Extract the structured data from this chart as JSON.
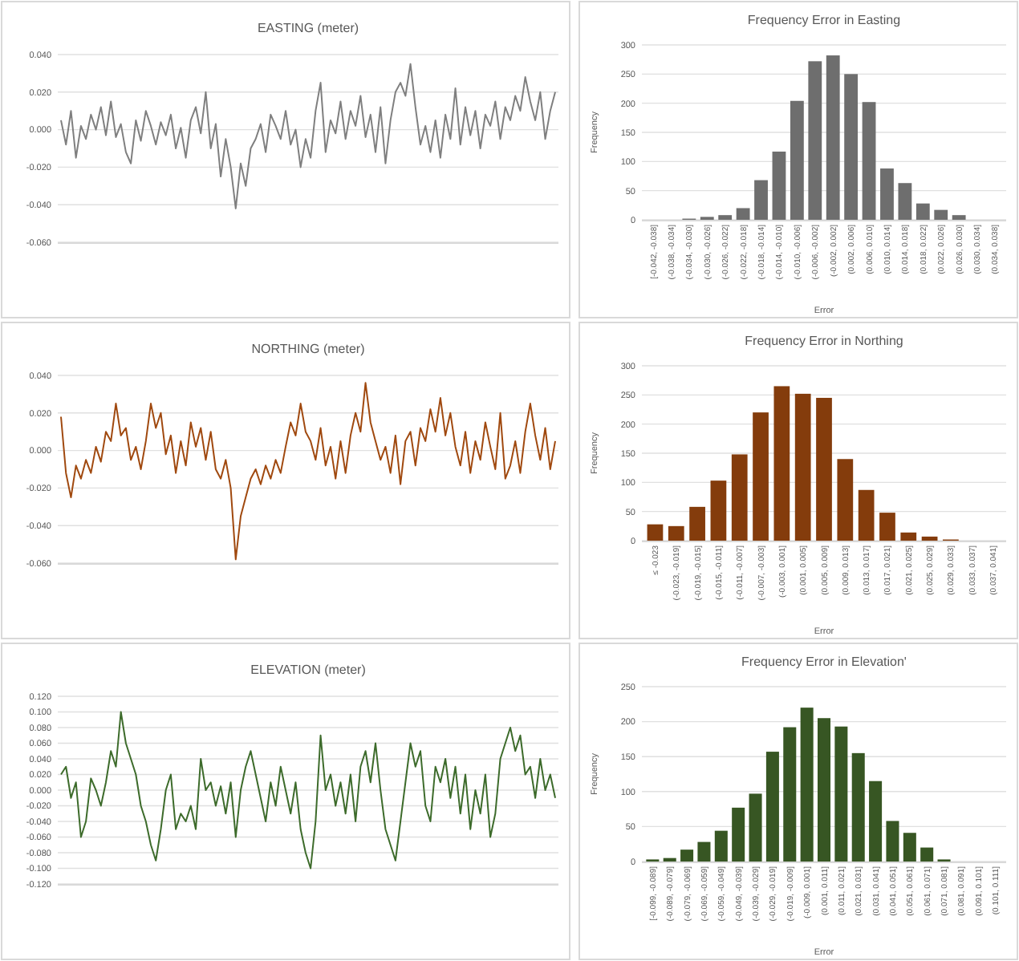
{
  "chart_data": [
    {
      "type": "line",
      "title": "EASTING (meter)",
      "grid": "y",
      "categories": [
        null,
        null,
        null,
        null,
        null,
        null,
        null,
        null,
        null,
        null,
        null,
        null,
        null,
        null,
        null,
        null,
        null,
        null,
        null,
        null,
        null,
        null,
        null,
        null,
        null,
        null,
        null,
        null,
        null,
        null,
        null,
        null,
        null,
        null,
        null,
        null,
        null,
        null,
        null,
        null,
        null,
        null,
        null,
        null,
        null,
        null,
        null,
        null,
        null,
        null,
        null,
        null,
        null,
        null,
        null,
        null,
        null,
        null,
        null,
        null,
        null,
        null,
        null,
        null,
        null,
        null,
        null,
        null,
        null,
        null,
        null,
        null,
        null,
        null,
        null,
        null,
        null,
        null,
        null,
        null,
        null,
        null,
        null,
        null,
        null,
        null,
        null,
        null,
        null,
        null,
        null,
        null,
        null,
        null,
        null,
        null,
        null,
        null,
        null,
        null
      ],
      "ylim": [
        -0.06,
        0.04
      ],
      "yticks": [
        {
          "value": -0.06,
          "label": "-0.060"
        },
        {
          "value": -0.04,
          "label": "-0.040"
        },
        {
          "value": -0.02,
          "label": "-0.020"
        },
        {
          "value": 0,
          "label": "0.000"
        },
        {
          "value": 0.02,
          "label": "0.020"
        },
        {
          "value": 0.04,
          "label": "0.040"
        }
      ],
      "color": "#7f7f7f",
      "values": [
        0.005,
        -0.008,
        0.01,
        -0.015,
        0.002,
        -0.005,
        0.008,
        0.0,
        0.012,
        -0.003,
        0.015,
        -0.004,
        0.003,
        -0.012,
        -0.018,
        0.005,
        -0.006,
        0.01,
        0.002,
        -0.008,
        0.004,
        -0.003,
        0.008,
        -0.01,
        0.001,
        -0.015,
        0.005,
        0.012,
        -0.002,
        0.02,
        -0.01,
        0.003,
        -0.025,
        -0.005,
        -0.02,
        -0.042,
        -0.018,
        -0.03,
        -0.01,
        -0.005,
        0.003,
        -0.012,
        0.008,
        0.002,
        -0.005,
        0.01,
        -0.008,
        0.0,
        -0.02,
        -0.005,
        -0.015,
        0.01,
        0.025,
        -0.012,
        0.005,
        -0.002,
        0.015,
        -0.005,
        0.01,
        0.002,
        0.018,
        -0.004,
        0.008,
        -0.012,
        0.012,
        -0.018,
        0.005,
        0.02,
        0.025,
        0.018,
        0.035,
        0.012,
        -0.008,
        0.002,
        -0.012,
        0.005,
        -0.015,
        0.008,
        -0.005,
        0.022,
        -0.008,
        0.012,
        -0.003,
        0.01,
        -0.01,
        0.008,
        0.002,
        0.015,
        -0.005,
        0.012,
        0.005,
        0.018,
        0.01,
        0.028,
        0.015,
        0.005,
        0.02,
        -0.005,
        0.01,
        0.02
      ]
    },
    {
      "type": "bar",
      "title": "Frequency Error in Easting",
      "xlabel": "Error",
      "ylabel": "Frequency",
      "grid": "y",
      "color": "#6e6e6e",
      "ylim": [
        0,
        300
      ],
      "yticks": [
        0,
        50,
        100,
        150,
        200,
        250,
        300
      ],
      "categories": [
        "[-0.042, -0.038]",
        "(-0.038, -0.034]",
        "(-0.034, -0.030]",
        "(-0.030, -0.026]",
        "(-0.026, -0.022]",
        "(-0.022, -0.018]",
        "(-0.018, -0.014]",
        "(-0.014, -0.010]",
        "(-0.010, -0.006]",
        "(-0.006, -0.002]",
        "(-0.002, 0.002]",
        "(0.002, 0.006]",
        "(0.006, 0.010]",
        "(0.010, 0.014]",
        "(0.014, 0.018]",
        "(0.018, 0.022]",
        "(0.022, 0.026]",
        "(0.026, 0.030]",
        "(0.030, 0.034]",
        "(0.034, 0.038]"
      ],
      "values": [
        0,
        0,
        2,
        5,
        8,
        20,
        68,
        117,
        204,
        272,
        282,
        250,
        202,
        88,
        63,
        28,
        17,
        8,
        0,
        0
      ]
    },
    {
      "type": "line",
      "title": "NORTHING (meter)",
      "grid": "y",
      "categories": [
        null,
        null,
        null,
        null,
        null,
        null,
        null,
        null,
        null,
        null,
        null,
        null,
        null,
        null,
        null,
        null,
        null,
        null,
        null,
        null,
        null,
        null,
        null,
        null,
        null,
        null,
        null,
        null,
        null,
        null,
        null,
        null,
        null,
        null,
        null,
        null,
        null,
        null,
        null,
        null,
        null,
        null,
        null,
        null,
        null,
        null,
        null,
        null,
        null,
        null,
        null,
        null,
        null,
        null,
        null,
        null,
        null,
        null,
        null,
        null,
        null,
        null,
        null,
        null,
        null,
        null,
        null,
        null,
        null,
        null,
        null,
        null,
        null,
        null,
        null,
        null,
        null,
        null,
        null,
        null,
        null,
        null,
        null,
        null,
        null,
        null,
        null,
        null,
        null,
        null,
        null,
        null,
        null,
        null,
        null,
        null,
        null,
        null,
        null,
        null
      ],
      "ylim": [
        -0.06,
        0.04
      ],
      "yticks": [
        {
          "value": -0.06,
          "label": "-0.060"
        },
        {
          "value": -0.04,
          "label": "-0.040"
        },
        {
          "value": -0.02,
          "label": "-0.020"
        },
        {
          "value": 0,
          "label": "0.000"
        },
        {
          "value": 0.02,
          "label": "0.020"
        },
        {
          "value": 0.04,
          "label": "0.040"
        }
      ],
      "color": "#a0490f",
      "values": [
        0.018,
        -0.012,
        -0.025,
        -0.008,
        -0.015,
        -0.005,
        -0.012,
        0.002,
        -0.006,
        0.01,
        0.005,
        0.025,
        0.008,
        0.012,
        -0.005,
        0.002,
        -0.01,
        0.005,
        0.025,
        0.012,
        0.02,
        -0.002,
        0.008,
        -0.012,
        0.005,
        -0.008,
        0.015,
        0.002,
        0.012,
        -0.005,
        0.01,
        -0.01,
        -0.015,
        -0.005,
        -0.02,
        -0.058,
        -0.035,
        -0.025,
        -0.015,
        -0.01,
        -0.018,
        -0.008,
        -0.015,
        -0.005,
        -0.012,
        0.002,
        0.015,
        0.008,
        0.025,
        0.01,
        0.005,
        -0.005,
        0.012,
        -0.008,
        0.002,
        -0.015,
        0.005,
        -0.012,
        0.008,
        0.02,
        0.01,
        0.036,
        0.015,
        0.005,
        -0.005,
        0.002,
        -0.012,
        0.008,
        -0.018,
        0.005,
        0.01,
        -0.008,
        0.012,
        0.005,
        0.022,
        0.01,
        0.028,
        0.008,
        0.02,
        0.002,
        -0.008,
        0.01,
        -0.012,
        0.005,
        -0.005,
        0.015,
        0.002,
        -0.01,
        0.02,
        -0.015,
        -0.008,
        0.005,
        -0.012,
        0.01,
        0.025,
        0.008,
        -0.005,
        0.012,
        -0.01,
        0.005
      ]
    },
    {
      "type": "bar",
      "title": "Frequency Error in Northing",
      "xlabel": "Error",
      "ylabel": "Frequency",
      "grid": "y",
      "color": "#843c0c",
      "ylim": [
        0,
        300
      ],
      "yticks": [
        0,
        50,
        100,
        150,
        200,
        250,
        300
      ],
      "categories": [
        "≤ -0.023",
        "(-0.023, -0.019]",
        "(-0.019, -0.015]",
        "(-0.015, -0.011]",
        "(-0.011, -0.007]",
        "(-0.007, -0.003]",
        "(-0.003, 0.001]",
        "(0.001, 0.005]",
        "(0.005, 0.009]",
        "(0.009, 0.013]",
        "(0.013, 0.017]",
        "(0.017, 0.021]",
        "(0.021, 0.025]",
        "(0.025, 0.029]",
        "(0.029, 0.033]",
        "(0.033, 0.037]",
        "(0.037, 0.041]"
      ],
      "values": [
        28,
        25,
        58,
        103,
        148,
        220,
        265,
        252,
        245,
        140,
        87,
        48,
        14,
        7,
        2,
        0,
        0
      ]
    },
    {
      "type": "line",
      "title": "ELEVATION (meter)",
      "grid": "y",
      "categories": [
        null,
        null,
        null,
        null,
        null,
        null,
        null,
        null,
        null,
        null,
        null,
        null,
        null,
        null,
        null,
        null,
        null,
        null,
        null,
        null,
        null,
        null,
        null,
        null,
        null,
        null,
        null,
        null,
        null,
        null,
        null,
        null,
        null,
        null,
        null,
        null,
        null,
        null,
        null,
        null,
        null,
        null,
        null,
        null,
        null,
        null,
        null,
        null,
        null,
        null,
        null,
        null,
        null,
        null,
        null,
        null,
        null,
        null,
        null,
        null,
        null,
        null,
        null,
        null,
        null,
        null,
        null,
        null,
        null,
        null,
        null,
        null,
        null,
        null,
        null,
        null,
        null,
        null,
        null,
        null,
        null,
        null,
        null,
        null,
        null,
        null,
        null,
        null,
        null,
        null,
        null,
        null,
        null,
        null,
        null,
        null,
        null,
        null,
        null,
        null
      ],
      "ylim": [
        -0.12,
        0.12
      ],
      "yticks": [
        {
          "value": -0.12,
          "label": "-0.120"
        },
        {
          "value": -0.1,
          "label": "-0.100"
        },
        {
          "value": -0.08,
          "label": "-0.080"
        },
        {
          "value": -0.06,
          "label": "-0.060"
        },
        {
          "value": -0.04,
          "label": "-0.040"
        },
        {
          "value": -0.02,
          "label": "-0.020"
        },
        {
          "value": 0,
          "label": "0.000"
        },
        {
          "value": 0.02,
          "label": "0.020"
        },
        {
          "value": 0.04,
          "label": "0.040"
        },
        {
          "value": 0.06,
          "label": "0.060"
        },
        {
          "value": 0.08,
          "label": "0.080"
        },
        {
          "value": 0.1,
          "label": "0.100"
        },
        {
          "value": 0.12,
          "label": "0.120"
        }
      ],
      "color": "#3d6b2b",
      "values": [
        0.02,
        0.03,
        -0.01,
        0.01,
        -0.06,
        -0.04,
        0.015,
        0.0,
        -0.02,
        0.01,
        0.05,
        0.03,
        0.1,
        0.06,
        0.04,
        0.02,
        -0.02,
        -0.04,
        -0.07,
        -0.09,
        -0.05,
        0.0,
        0.02,
        -0.05,
        -0.03,
        -0.04,
        -0.02,
        -0.05,
        0.04,
        0.0,
        0.01,
        -0.02,
        0.005,
        -0.03,
        0.01,
        -0.06,
        0.0,
        0.03,
        0.05,
        0.02,
        -0.01,
        -0.04,
        0.01,
        -0.02,
        0.03,
        0.0,
        -0.03,
        0.01,
        -0.05,
        -0.08,
        -0.1,
        -0.04,
        0.07,
        0.0,
        0.02,
        -0.02,
        0.01,
        -0.03,
        0.02,
        -0.04,
        0.03,
        0.05,
        0.01,
        0.06,
        0.0,
        -0.05,
        -0.07,
        -0.09,
        -0.04,
        0.01,
        0.06,
        0.03,
        0.05,
        -0.02,
        -0.04,
        0.03,
        0.01,
        0.04,
        -0.01,
        0.03,
        -0.03,
        0.02,
        -0.05,
        0.0,
        -0.03,
        0.02,
        -0.06,
        -0.03,
        0.04,
        0.06,
        0.08,
        0.05,
        0.07,
        0.02,
        0.03,
        -0.01,
        0.04,
        0.0,
        0.02,
        -0.01
      ]
    },
    {
      "type": "bar",
      "title": "Frequency Error in Elevation'",
      "xlabel": "Error",
      "ylabel": "Frequency",
      "grid": "y",
      "color": "#375623",
      "ylim": [
        0,
        250
      ],
      "yticks": [
        0,
        50,
        100,
        150,
        200,
        250
      ],
      "categories": [
        "[-0.099, -0.089]",
        "(-0.089, -0.079]",
        "(-0.079, -0.069]",
        "(-0.069, -0.059]",
        "(-0.059, -0.049]",
        "(-0.049, -0.039]",
        "(-0.039, -0.029]",
        "(-0.029, -0.019]",
        "(-0.019, -0.009]",
        "(-0.009, 0.001]",
        "(0.001, 0.011]",
        "(0.011, 0.021]",
        "(0.021, 0.031]",
        "(0.031, 0.041]",
        "(0.041, 0.051]",
        "(0.051, 0.061]",
        "(0.061, 0.071]",
        "(0.071, 0.081]",
        "(0.081, 0.091]",
        "(0.091, 0.101]",
        "(0.101, 0.111]"
      ],
      "values": [
        3,
        5,
        17,
        28,
        44,
        77,
        97,
        157,
        192,
        220,
        205,
        193,
        155,
        115,
        58,
        41,
        20,
        3,
        0,
        0,
        0
      ]
    }
  ]
}
